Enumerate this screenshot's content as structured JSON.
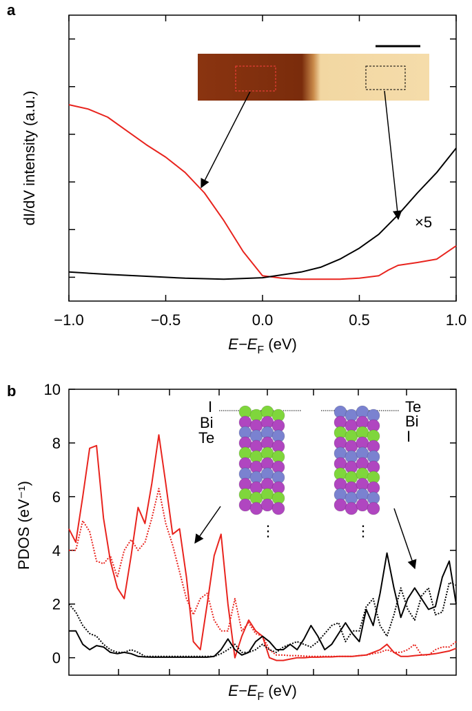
{
  "chart_data": [
    {
      "type": "line",
      "panel": "a",
      "xlabel": {
        "main": "E−E",
        "sub": "F",
        "unit": " (eV)"
      },
      "ylabel": "dI/dV intensity (a.u.)",
      "xlim": [
        -1.0,
        1.0
      ],
      "xticks": [
        {
          "value": -1.0,
          "label": "−1.0"
        },
        {
          "value": -0.5,
          "label": "−0.5"
        },
        {
          "value": 0.0,
          "label": "0.0"
        },
        {
          "value": 0.5,
          "label": "0.5"
        },
        {
          "value": 1.0,
          "label": "1.0"
        }
      ],
      "ylim": [
        -0.5,
        5.5
      ],
      "yticks": [
        0,
        1,
        2,
        3,
        4,
        5
      ],
      "annotations": [
        {
          "text": "×5"
        }
      ],
      "series": [
        {
          "color": "#e8231d",
          "style": "solid",
          "x": [
            -1.0,
            -0.9,
            -0.8,
            -0.7,
            -0.6,
            -0.5,
            -0.4,
            -0.3,
            -0.2,
            -0.1,
            0.0,
            0.1,
            0.2,
            0.3,
            0.4,
            0.5,
            0.6,
            0.65,
            0.7,
            0.8,
            0.9,
            1.0
          ],
          "values": [
            3.62,
            3.53,
            3.36,
            3.07,
            2.78,
            2.52,
            2.2,
            1.77,
            1.19,
            0.54,
            0.03,
            -0.02,
            -0.04,
            -0.04,
            -0.04,
            -0.02,
            0.03,
            0.15,
            0.25,
            0.31,
            0.38,
            0.66
          ]
        },
        {
          "color": "#000000",
          "style": "solid",
          "x": [
            -1.0,
            -0.8,
            -0.6,
            -0.4,
            -0.2,
            0.0,
            0.2,
            0.3,
            0.4,
            0.5,
            0.6,
            0.7,
            0.8,
            0.9,
            1.0
          ],
          "values": [
            0.11,
            0.06,
            0.02,
            -0.02,
            -0.04,
            -0.01,
            0.11,
            0.21,
            0.38,
            0.61,
            0.9,
            1.31,
            1.77,
            2.2,
            2.71
          ]
        }
      ]
    },
    {
      "type": "line",
      "panel": "b",
      "xlabel": {
        "main": "E−E",
        "sub": "F",
        "unit": " (eV)"
      },
      "ylabel": "PDOS (eV⁻¹)",
      "ylim": [
        -0.65,
        10
      ],
      "yticks": [
        0,
        2,
        4,
        6,
        8,
        10
      ],
      "structures": [
        {
          "labels": [
            {
              "text": "I",
              "color": "#2ecc2e"
            },
            {
              "text": "Bi",
              "color": "#a0209a"
            },
            {
              "text": "Te",
              "color": "#5a6fc8"
            }
          ]
        },
        {
          "labels": [
            {
              "text": "Te",
              "color": "#5a6fc8"
            },
            {
              "text": "Bi",
              "color": "#a0209a"
            },
            {
              "text": "I",
              "color": "#2ecc2e"
            }
          ]
        }
      ],
      "series": [
        {
          "color": "#e8231d",
          "style": "solid",
          "values": [
            4.8,
            4.3,
            6.0,
            7.8,
            7.9,
            5.2,
            3.6,
            2.6,
            2.2,
            3.8,
            5.6,
            5.0,
            6.5,
            8.3,
            6.5,
            4.6,
            4.8,
            3.0,
            0.6,
            0.3,
            2.0,
            3.8,
            4.6,
            2.0,
            0.0,
            0.8,
            1.4,
            1.0,
            0.8,
            0.0,
            -0.1,
            -0.1,
            -0.05,
            0.0,
            0.0,
            0.02,
            0.02,
            0.03,
            0.03,
            0.05,
            0.05,
            0.05,
            0.08,
            0.1,
            0.2,
            0.3,
            0.5,
            0.2,
            0.05,
            0.05,
            0.08,
            0.1,
            0.12,
            0.15,
            0.2,
            0.25,
            0.35
          ]
        },
        {
          "color": "#e8231d",
          "style": "dotted",
          "values": [
            4.0,
            4.0,
            5.1,
            4.7,
            3.6,
            3.5,
            3.8,
            3.0,
            4.0,
            4.4,
            4.0,
            4.3,
            5.2,
            6.3,
            5.0,
            4.2,
            3.2,
            2.2,
            1.6,
            2.2,
            2.4,
            1.4,
            1.0,
            1.0,
            2.2,
            1.0,
            1.3,
            0.9,
            0.8,
            0.3,
            0.1,
            0.1,
            0.08,
            0.08,
            0.06,
            0.05,
            0.05,
            0.05,
            0.05,
            0.05,
            0.05,
            0.05,
            0.08,
            0.1,
            0.15,
            0.2,
            0.3,
            0.2,
            0.2,
            0.3,
            0.5,
            0.1,
            0.1,
            0.3,
            0.4,
            0.4,
            0.6
          ]
        },
        {
          "color": "#000000",
          "style": "solid",
          "values": [
            1.0,
            1.0,
            0.5,
            0.3,
            0.45,
            0.4,
            0.2,
            0.15,
            0.2,
            0.15,
            0.05,
            0.03,
            0.02,
            0.02,
            0.02,
            0.02,
            0.02,
            0.02,
            0.02,
            0.02,
            0.02,
            0.05,
            0.3,
            0.7,
            0.3,
            0.1,
            0.2,
            0.6,
            0.8,
            0.6,
            0.3,
            0.3,
            0.5,
            0.3,
            0.7,
            1.2,
            0.8,
            0.3,
            0.5,
            0.9,
            1.3,
            0.9,
            0.6,
            1.8,
            1.2,
            2.4,
            3.9,
            2.6,
            1.5,
            2.2,
            2.6,
            2.2,
            1.8,
            1.9,
            3.0,
            3.6,
            2.0
          ]
        },
        {
          "color": "#000000",
          "style": "dotted",
          "values": [
            2.0,
            1.7,
            1.2,
            0.9,
            0.8,
            0.5,
            0.3,
            0.2,
            0.2,
            0.3,
            0.2,
            0.05,
            0.05,
            0.05,
            0.05,
            0.05,
            0.05,
            0.05,
            0.05,
            0.05,
            0.05,
            0.05,
            0.15,
            0.3,
            0.5,
            0.2,
            0.2,
            0.3,
            0.5,
            0.3,
            0.2,
            0.4,
            0.5,
            0.6,
            0.5,
            0.4,
            0.6,
            0.9,
            1.2,
            1.3,
            0.6,
            1.0,
            1.0,
            1.9,
            2.2,
            1.2,
            0.8,
            1.6,
            2.6,
            1.8,
            1.4,
            2.3,
            2.6,
            1.6,
            1.7,
            2.8,
            2.7
          ]
        }
      ]
    }
  ]
}
